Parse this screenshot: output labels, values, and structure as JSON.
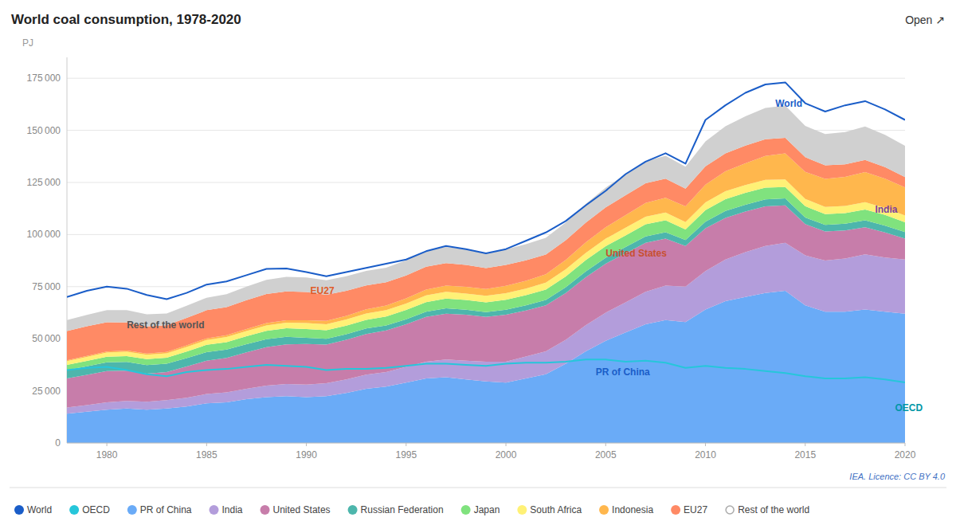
{
  "chart_data": {
    "type": "area",
    "stacked": true,
    "title": "World coal consumption, 1978-2020",
    "ylabel": "PJ",
    "credit": "IEA. Licence: CC BY 4.0",
    "open_label": "Open ↗",
    "x": [
      1978,
      1979,
      1980,
      1981,
      1982,
      1983,
      1984,
      1985,
      1986,
      1987,
      1988,
      1989,
      1990,
      1991,
      1992,
      1993,
      1994,
      1995,
      1996,
      1997,
      1998,
      1999,
      2000,
      2001,
      2002,
      2003,
      2004,
      2005,
      2006,
      2007,
      2008,
      2009,
      2010,
      2011,
      2012,
      2013,
      2014,
      2015,
      2016,
      2017,
      2018,
      2019,
      2020
    ],
    "series": [
      {
        "name": "World",
        "type": "line",
        "color": "#1a5dc8",
        "values": [
          70000,
          73000,
          75000,
          74000,
          71000,
          69000,
          72000,
          76000,
          77500,
          80500,
          83500,
          83700,
          82000,
          80000,
          82000,
          84000,
          86000,
          88000,
          92000,
          94500,
          93000,
          91000,
          93000,
          97000,
          101000,
          106500,
          114000,
          121000,
          129000,
          135000,
          139000,
          134000,
          155000,
          162000,
          168000,
          172000,
          173000,
          163000,
          159000,
          162000,
          164000,
          160000,
          155000
        ]
      },
      {
        "name": "OECD",
        "type": "line",
        "color": "#26c6da",
        "values": [
          35000,
          36000,
          36500,
          35000,
          33000,
          32000,
          34000,
          35000,
          35500,
          36500,
          37500,
          37000,
          36500,
          35000,
          35500,
          35500,
          36000,
          37000,
          38000,
          38000,
          37500,
          37000,
          38000,
          38500,
          38500,
          39000,
          40000,
          40000,
          39000,
          39500,
          38500,
          36000,
          37000,
          36000,
          35500,
          34500,
          33500,
          32000,
          31000,
          31000,
          31500,
          30500,
          29000
        ]
      },
      {
        "name": "PR of China",
        "type": "area",
        "color": "#6aabf7",
        "values": [
          14000,
          15000,
          16000,
          16500,
          16000,
          16500,
          17500,
          19000,
          19500,
          21000,
          22000,
          22500,
          22000,
          22500,
          24000,
          26000,
          27000,
          29000,
          31000,
          31500,
          30500,
          29500,
          29000,
          31000,
          33000,
          38000,
          44000,
          49000,
          53000,
          57000,
          59000,
          58000,
          64000,
          68000,
          70000,
          72000,
          73000,
          66000,
          63000,
          63000,
          64000,
          63000,
          62000
        ]
      },
      {
        "name": "India",
        "type": "area",
        "color": "#b39ddb",
        "values": [
          3000,
          3200,
          3500,
          3700,
          3800,
          4000,
          4200,
          4500,
          4800,
          5000,
          5500,
          5800,
          6000,
          6200,
          6500,
          6800,
          7000,
          7500,
          8000,
          8500,
          9000,
          9500,
          10000,
          10500,
          11000,
          11500,
          12500,
          13500,
          14500,
          15500,
          16500,
          17000,
          18500,
          20000,
          21500,
          22500,
          23000,
          24000,
          24500,
          25500,
          26500,
          26000,
          26000
        ]
      },
      {
        "name": "United States",
        "type": "area",
        "color": "#c77daa",
        "values": [
          14000,
          14500,
          15000,
          14500,
          13500,
          13500,
          15000,
          16000,
          16500,
          17500,
          18500,
          19000,
          19500,
          18500,
          19000,
          19500,
          20000,
          20500,
          21500,
          22000,
          22000,
          21500,
          22500,
          22000,
          22000,
          22500,
          23000,
          23500,
          23500,
          23500,
          22500,
          19500,
          20500,
          20000,
          19500,
          19000,
          18000,
          15000,
          14000,
          13500,
          13000,
          12000,
          10000
        ]
      },
      {
        "name": "Russian Federation",
        "type": "area",
        "color": "#4db6ac",
        "values": [
          4000,
          4100,
          4200,
          4200,
          4100,
          4000,
          4000,
          4100,
          4000,
          3900,
          3800,
          3600,
          3000,
          2800,
          2700,
          2600,
          2400,
          2300,
          2500,
          2600,
          2400,
          2300,
          2400,
          2500,
          2600,
          2700,
          2800,
          2900,
          3000,
          3100,
          3100,
          2900,
          3200,
          3300,
          3300,
          3400,
          3300,
          3200,
          3100,
          3200,
          3300,
          3300,
          3200
        ]
      },
      {
        "name": "Japan",
        "type": "area",
        "color": "#80e27e",
        "values": [
          2500,
          2600,
          2700,
          2800,
          2800,
          2900,
          3200,
          3500,
          3600,
          3800,
          4000,
          4100,
          4200,
          4100,
          4100,
          4200,
          4300,
          4500,
          4600,
          4700,
          4700,
          4700,
          4800,
          4900,
          5000,
          5200,
          5400,
          5500,
          5600,
          5800,
          5700,
          5000,
          5500,
          5700,
          5700,
          5600,
          5500,
          5400,
          5200,
          5100,
          5200,
          5100,
          4700
        ]
      },
      {
        "name": "South Africa",
        "type": "area",
        "color": "#fff176",
        "values": [
          1800,
          1900,
          2000,
          2100,
          2100,
          2100,
          2200,
          2300,
          2400,
          2500,
          2600,
          2700,
          2800,
          2900,
          2900,
          3000,
          3000,
          3100,
          3200,
          3200,
          3100,
          3100,
          3200,
          3200,
          3300,
          3400,
          3500,
          3600,
          3700,
          3700,
          3800,
          3600,
          3700,
          3800,
          3700,
          3700,
          3600,
          3500,
          3400,
          3400,
          3500,
          3400,
          3200
        ]
      },
      {
        "name": "Indonesia",
        "type": "area",
        "color": "#ffb74d",
        "values": [
          400,
          450,
          500,
          550,
          600,
          650,
          700,
          800,
          900,
          1000,
          1100,
          1200,
          1400,
          1600,
          1800,
          2000,
          2200,
          2500,
          2800,
          3000,
          3200,
          3300,
          3500,
          3700,
          4000,
          4500,
          5000,
          5500,
          6000,
          6500,
          7000,
          7500,
          8500,
          9500,
          10500,
          11500,
          12500,
          13000,
          13500,
          14000,
          14500,
          14000,
          13500
        ]
      },
      {
        "name": "EU27",
        "type": "area",
        "color": "#ff8a65",
        "values": [
          14000,
          14200,
          14000,
          13500,
          13000,
          12800,
          13200,
          13500,
          13500,
          13800,
          14000,
          13800,
          13500,
          12500,
          12000,
          11500,
          11200,
          11000,
          11000,
          10800,
          10500,
          10000,
          10000,
          9800,
          9500,
          9500,
          9500,
          9500,
          9600,
          9500,
          9200,
          8500,
          8800,
          8600,
          8500,
          8000,
          7500,
          7000,
          6500,
          6000,
          5800,
          5500,
          5000
        ]
      },
      {
        "name": "Rest of the world",
        "type": "area",
        "color": "#d0d0d0",
        "marker": "hollow",
        "values": [
          5300,
          5500,
          5800,
          5900,
          5800,
          5700,
          5800,
          6000,
          6200,
          6500,
          6800,
          7000,
          7000,
          7000,
          7000,
          7000,
          7000,
          7200,
          7500,
          7700,
          7500,
          7300,
          7500,
          7800,
          8000,
          8500,
          9000,
          9500,
          10000,
          10500,
          11000,
          10500,
          12000,
          13000,
          14000,
          15000,
          15500,
          15000,
          15000,
          15500,
          16000,
          15500,
          15000
        ]
      }
    ],
    "xlim": [
      1978,
      2020
    ],
    "xticks": [
      1980,
      1985,
      1990,
      1995,
      2000,
      2005,
      2010,
      2015,
      2020
    ],
    "ylim": [
      0,
      185000
    ],
    "yticks": [
      0,
      {
        "value": 25000,
        "label": "25 000"
      },
      {
        "value": 50000,
        "label": "50 000"
      },
      {
        "value": 75000,
        "label": "75 000"
      },
      {
        "value": 100000,
        "label": "100 000"
      },
      {
        "value": 125000,
        "label": "125 000"
      },
      {
        "value": 150000,
        "label": "150 000"
      },
      {
        "value": 175000,
        "label": "175 000"
      }
    ],
    "grid": true,
    "legend": "bottom",
    "annotations": [
      {
        "text": "World",
        "x": 2013.5,
        "y": 163000,
        "color": "#1a5dc8"
      },
      {
        "text": "Rest of the world",
        "x": 1981,
        "y": 56500,
        "color": "#555555"
      },
      {
        "text": "EU27",
        "x": 1990.2,
        "y": 73000,
        "color": "#e05c2a"
      },
      {
        "text": "United States",
        "x": 2005,
        "y": 91000,
        "color": "#c75030"
      },
      {
        "text": "PR of China",
        "x": 2004.5,
        "y": 34000,
        "color": "#1a5dc8"
      },
      {
        "text": "India",
        "x": 2018.5,
        "y": 112000,
        "color": "#7b3fa0"
      },
      {
        "text": "OECD",
        "x": 2019.5,
        "y": 17000,
        "color": "#0097a7"
      }
    ]
  }
}
